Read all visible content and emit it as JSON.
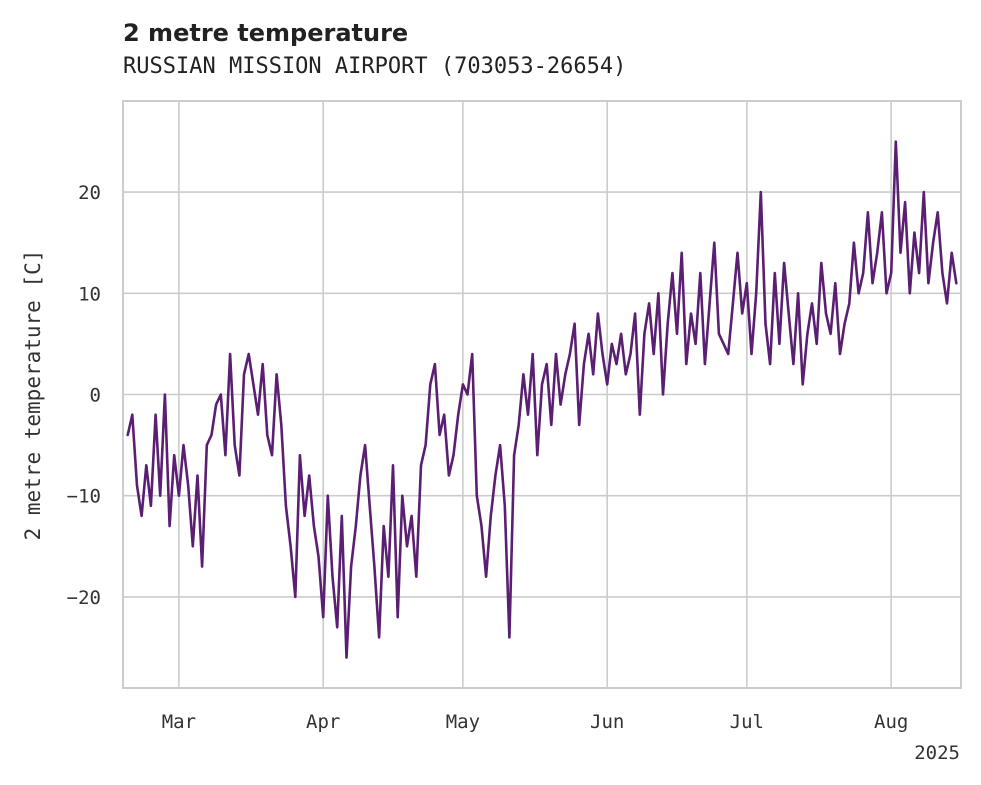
{
  "chart_data": {
    "type": "line",
    "title": "2 metre temperature",
    "subtitle": "RUSSIAN MISSION AIRPORT (703053-26654)",
    "ylabel": "2 metre temperature [C]",
    "xlabel": "",
    "x_year_label": "2025",
    "ylim": [
      -29,
      29
    ],
    "xlim": [
      "2025-02-17",
      "2025-08-16"
    ],
    "yticks": [
      -20,
      -10,
      0,
      10,
      20
    ],
    "xticks": [
      {
        "date": "2025-03-01",
        "label": "Mar"
      },
      {
        "date": "2025-04-01",
        "label": "Apr"
      },
      {
        "date": "2025-05-01",
        "label": "May"
      },
      {
        "date": "2025-06-01",
        "label": "Jun"
      },
      {
        "date": "2025-07-01",
        "label": "Jul"
      },
      {
        "date": "2025-08-01",
        "label": "Aug"
      }
    ],
    "grid": true,
    "line_color": "#5a1f73",
    "series": [
      {
        "values": [
          [
            "2025-02-18",
            -4
          ],
          [
            "2025-02-19",
            -2
          ],
          [
            "2025-02-20",
            -9
          ],
          [
            "2025-02-21",
            -12
          ],
          [
            "2025-02-22",
            -7
          ],
          [
            "2025-02-23",
            -11
          ],
          [
            "2025-02-24",
            -2
          ],
          [
            "2025-02-25",
            -10
          ],
          [
            "2025-02-26",
            0
          ],
          [
            "2025-02-27",
            -13
          ],
          [
            "2025-02-28",
            -6
          ],
          [
            "2025-03-01",
            -10
          ],
          [
            "2025-03-02",
            -5
          ],
          [
            "2025-03-03",
            -9
          ],
          [
            "2025-03-04",
            -15
          ],
          [
            "2025-03-05",
            -8
          ],
          [
            "2025-03-06",
            -17
          ],
          [
            "2025-03-07",
            -5
          ],
          [
            "2025-03-08",
            -4
          ],
          [
            "2025-03-09",
            -1
          ],
          [
            "2025-03-10",
            0
          ],
          [
            "2025-03-11",
            -6
          ],
          [
            "2025-03-12",
            4
          ],
          [
            "2025-03-13",
            -5
          ],
          [
            "2025-03-14",
            -8
          ],
          [
            "2025-03-15",
            2
          ],
          [
            "2025-03-16",
            4
          ],
          [
            "2025-03-17",
            1
          ],
          [
            "2025-03-18",
            -2
          ],
          [
            "2025-03-19",
            3
          ],
          [
            "2025-03-20",
            -4
          ],
          [
            "2025-03-21",
            -6
          ],
          [
            "2025-03-22",
            2
          ],
          [
            "2025-03-23",
            -3
          ],
          [
            "2025-03-24",
            -11
          ],
          [
            "2025-03-25",
            -15
          ],
          [
            "2025-03-26",
            -20
          ],
          [
            "2025-03-27",
            -6
          ],
          [
            "2025-03-28",
            -12
          ],
          [
            "2025-03-29",
            -8
          ],
          [
            "2025-03-30",
            -13
          ],
          [
            "2025-03-31",
            -16
          ],
          [
            "2025-04-01",
            -22
          ],
          [
            "2025-04-02",
            -10
          ],
          [
            "2025-04-03",
            -18
          ],
          [
            "2025-04-04",
            -23
          ],
          [
            "2025-04-05",
            -12
          ],
          [
            "2025-04-06",
            -26
          ],
          [
            "2025-04-07",
            -17
          ],
          [
            "2025-04-08",
            -13
          ],
          [
            "2025-04-09",
            -8
          ],
          [
            "2025-04-10",
            -5
          ],
          [
            "2025-04-11",
            -11
          ],
          [
            "2025-04-12",
            -17
          ],
          [
            "2025-04-13",
            -24
          ],
          [
            "2025-04-14",
            -13
          ],
          [
            "2025-04-15",
            -18
          ],
          [
            "2025-04-16",
            -7
          ],
          [
            "2025-04-17",
            -22
          ],
          [
            "2025-04-18",
            -10
          ],
          [
            "2025-04-19",
            -15
          ],
          [
            "2025-04-20",
            -12
          ],
          [
            "2025-04-21",
            -18
          ],
          [
            "2025-04-22",
            -7
          ],
          [
            "2025-04-23",
            -5
          ],
          [
            "2025-04-24",
            1
          ],
          [
            "2025-04-25",
            3
          ],
          [
            "2025-04-26",
            -4
          ],
          [
            "2025-04-27",
            -2
          ],
          [
            "2025-04-28",
            -8
          ],
          [
            "2025-04-29",
            -6
          ],
          [
            "2025-04-30",
            -2
          ],
          [
            "2025-05-01",
            1
          ],
          [
            "2025-05-02",
            0
          ],
          [
            "2025-05-03",
            4
          ],
          [
            "2025-05-04",
            -10
          ],
          [
            "2025-05-05",
            -13
          ],
          [
            "2025-05-06",
            -18
          ],
          [
            "2025-05-07",
            -12
          ],
          [
            "2025-05-08",
            -8
          ],
          [
            "2025-05-09",
            -5
          ],
          [
            "2025-05-10",
            -11
          ],
          [
            "2025-05-11",
            -24
          ],
          [
            "2025-05-12",
            -6
          ],
          [
            "2025-05-13",
            -3
          ],
          [
            "2025-05-14",
            2
          ],
          [
            "2025-05-15",
            -2
          ],
          [
            "2025-05-16",
            4
          ],
          [
            "2025-05-17",
            -6
          ],
          [
            "2025-05-18",
            1
          ],
          [
            "2025-05-19",
            3
          ],
          [
            "2025-05-20",
            -3
          ],
          [
            "2025-05-21",
            4
          ],
          [
            "2025-05-22",
            -1
          ],
          [
            "2025-05-23",
            2
          ],
          [
            "2025-05-24",
            4
          ],
          [
            "2025-05-25",
            7
          ],
          [
            "2025-05-26",
            -3
          ],
          [
            "2025-05-27",
            3
          ],
          [
            "2025-05-28",
            6
          ],
          [
            "2025-05-29",
            2
          ],
          [
            "2025-05-30",
            8
          ],
          [
            "2025-05-31",
            4
          ],
          [
            "2025-06-01",
            1
          ],
          [
            "2025-06-02",
            5
          ],
          [
            "2025-06-03",
            3
          ],
          [
            "2025-06-04",
            6
          ],
          [
            "2025-06-05",
            2
          ],
          [
            "2025-06-06",
            4
          ],
          [
            "2025-06-07",
            8
          ],
          [
            "2025-06-08",
            -2
          ],
          [
            "2025-06-09",
            6
          ],
          [
            "2025-06-10",
            9
          ],
          [
            "2025-06-11",
            4
          ],
          [
            "2025-06-12",
            10
          ],
          [
            "2025-06-13",
            0
          ],
          [
            "2025-06-14",
            7
          ],
          [
            "2025-06-15",
            12
          ],
          [
            "2025-06-16",
            6
          ],
          [
            "2025-06-17",
            14
          ],
          [
            "2025-06-18",
            3
          ],
          [
            "2025-06-19",
            8
          ],
          [
            "2025-06-20",
            5
          ],
          [
            "2025-06-21",
            12
          ],
          [
            "2025-06-22",
            3
          ],
          [
            "2025-06-23",
            9
          ],
          [
            "2025-06-24",
            15
          ],
          [
            "2025-06-25",
            6
          ],
          [
            "2025-06-26",
            5
          ],
          [
            "2025-06-27",
            4
          ],
          [
            "2025-06-28",
            9
          ],
          [
            "2025-06-29",
            14
          ],
          [
            "2025-06-30",
            8
          ],
          [
            "2025-07-01",
            11
          ],
          [
            "2025-07-02",
            4
          ],
          [
            "2025-07-03",
            10
          ],
          [
            "2025-07-04",
            20
          ],
          [
            "2025-07-05",
            7
          ],
          [
            "2025-07-06",
            3
          ],
          [
            "2025-07-07",
            12
          ],
          [
            "2025-07-08",
            5
          ],
          [
            "2025-07-09",
            13
          ],
          [
            "2025-07-10",
            8
          ],
          [
            "2025-07-11",
            3
          ],
          [
            "2025-07-12",
            10
          ],
          [
            "2025-07-13",
            1
          ],
          [
            "2025-07-14",
            6
          ],
          [
            "2025-07-15",
            9
          ],
          [
            "2025-07-16",
            5
          ],
          [
            "2025-07-17",
            13
          ],
          [
            "2025-07-18",
            8
          ],
          [
            "2025-07-19",
            6
          ],
          [
            "2025-07-20",
            11
          ],
          [
            "2025-07-21",
            4
          ],
          [
            "2025-07-22",
            7
          ],
          [
            "2025-07-23",
            9
          ],
          [
            "2025-07-24",
            15
          ],
          [
            "2025-07-25",
            10
          ],
          [
            "2025-07-26",
            12
          ],
          [
            "2025-07-27",
            18
          ],
          [
            "2025-07-28",
            11
          ],
          [
            "2025-07-29",
            14
          ],
          [
            "2025-07-30",
            18
          ],
          [
            "2025-07-31",
            10
          ],
          [
            "2025-08-01",
            12
          ],
          [
            "2025-08-02",
            25
          ],
          [
            "2025-08-03",
            14
          ],
          [
            "2025-08-04",
            19
          ],
          [
            "2025-08-05",
            10
          ],
          [
            "2025-08-06",
            16
          ],
          [
            "2025-08-07",
            12
          ],
          [
            "2025-08-08",
            20
          ],
          [
            "2025-08-09",
            11
          ],
          [
            "2025-08-10",
            15
          ],
          [
            "2025-08-11",
            18
          ],
          [
            "2025-08-12",
            12
          ],
          [
            "2025-08-13",
            9
          ],
          [
            "2025-08-14",
            14
          ],
          [
            "2025-08-15",
            11
          ]
        ]
      }
    ]
  }
}
